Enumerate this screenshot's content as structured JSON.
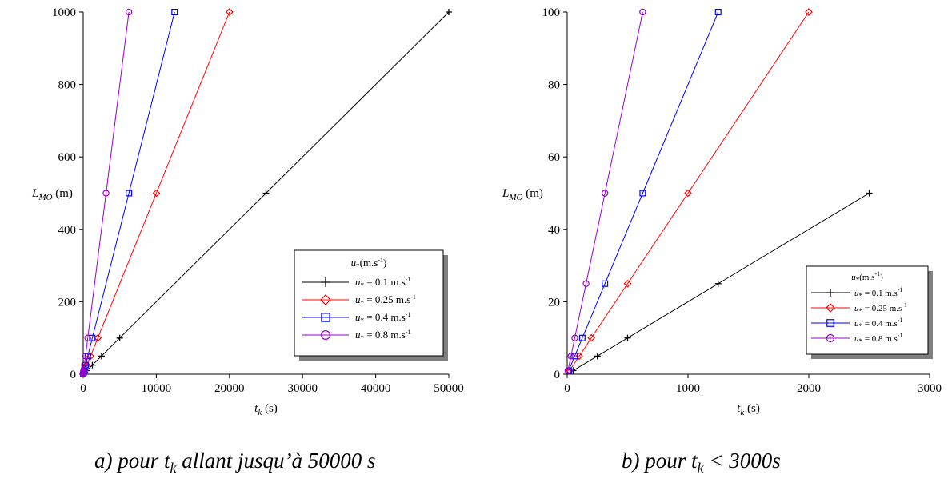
{
  "colors": {
    "black": "#000000",
    "red": "#ff0000",
    "blue": "#0000ff",
    "purple": "#9900cc",
    "shadow": "#808080"
  },
  "chart_data": [
    {
      "type": "line",
      "panel": "a",
      "xlabel": {
        "base": "t",
        "sub": "k",
        "unit": "(s)"
      },
      "ylabel": {
        "base": "L",
        "sub": "MO",
        "unit": "(m)"
      },
      "xlim": [
        0,
        50000
      ],
      "ylim": [
        0,
        1000
      ],
      "xticks": [
        "0",
        "10000",
        "20000",
        "30000",
        "40000",
        "50000"
      ],
      "yticks": [
        "0",
        "200",
        "400",
        "600",
        "800",
        "1000"
      ],
      "legend_title": {
        "base": "u",
        "sub": "*",
        "unit": "(m.s",
        "exp": "-1",
        "close": ")"
      },
      "legend_position": "bottom-right",
      "caption": {
        "prefix": "a) pour t",
        "sub": "k",
        "suffix": " allant jusqu’à 50000 s"
      },
      "series": [
        {
          "name": "u* = 0.1 m.s-1",
          "label": {
            "pre": "u",
            "sub": "*",
            "mid": " = 0.1 m.s",
            "sup": "-1"
          },
          "color": "#000000",
          "marker": "plus",
          "points": [
            [
              50,
              1
            ],
            [
              250,
              5
            ],
            [
              500,
              10
            ],
            [
              1250,
              25
            ],
            [
              2500,
              50
            ],
            [
              5000,
              100
            ],
            [
              25000,
              500
            ],
            [
              50000,
              1000
            ]
          ]
        },
        {
          "name": "u* = 0.25 m.s-1",
          "label": {
            "pre": "u",
            "sub": "*",
            "mid": " = 0.25 m.s",
            "sup": "-1"
          },
          "color": "#ff0000",
          "marker": "diamond",
          "points": [
            [
              20,
              1
            ],
            [
              100,
              5
            ],
            [
              200,
              10
            ],
            [
              500,
              25
            ],
            [
              1000,
              50
            ],
            [
              2000,
              100
            ],
            [
              10000,
              500
            ],
            [
              20000,
              1000
            ]
          ]
        },
        {
          "name": "u* = 0.4 m.s-1",
          "label": {
            "pre": "u",
            "sub": "*",
            "mid": " = 0.4 m.s",
            "sup": "-1"
          },
          "color": "#0000ff",
          "marker": "square",
          "points": [
            [
              12.5,
              1
            ],
            [
              62.5,
              5
            ],
            [
              125,
              10
            ],
            [
              312.5,
              25
            ],
            [
              625,
              50
            ],
            [
              1250,
              100
            ],
            [
              6250,
              500
            ],
            [
              12500,
              1000
            ]
          ]
        },
        {
          "name": "u* = 0.8 m.s-1",
          "label": {
            "pre": "u",
            "sub": "*",
            "mid": " = 0.8 m.s",
            "sup": "-1"
          },
          "color": "#9900cc",
          "marker": "circle",
          "points": [
            [
              6.25,
              1
            ],
            [
              31.25,
              5
            ],
            [
              62.5,
              10
            ],
            [
              156.25,
              25
            ],
            [
              312.5,
              50
            ],
            [
              625,
              100
            ],
            [
              3125,
              500
            ],
            [
              6250,
              1000
            ]
          ]
        }
      ]
    },
    {
      "type": "line",
      "panel": "b",
      "xlabel": {
        "base": "t",
        "sub": "k",
        "unit": "(s)"
      },
      "ylabel": {
        "base": "L",
        "sub": "MO",
        "unit": "(m)"
      },
      "xlim": [
        0,
        3000
      ],
      "ylim": [
        0,
        100
      ],
      "xticks": [
        "0",
        "1000",
        "2000",
        "3000"
      ],
      "yticks": [
        "0",
        "20",
        "40",
        "60",
        "80",
        "100"
      ],
      "legend_title": {
        "base": "u",
        "sub": "*",
        "unit": "(m.s",
        "exp": "-1",
        "close": ")"
      },
      "legend_position": "bottom-right",
      "caption": {
        "prefix": "b) pour t",
        "sub": "k",
        "suffix": " < 3000s"
      },
      "series": [
        {
          "name": "u* = 0.1 m.s-1",
          "label": {
            "pre": "u",
            "sub": "*",
            "mid": " = 0.1 m.s",
            "sup": "-1"
          },
          "color": "#000000",
          "marker": "plus",
          "points": [
            [
              50,
              1
            ],
            [
              250,
              5
            ],
            [
              500,
              10
            ],
            [
              1250,
              25
            ],
            [
              2500,
              50
            ]
          ]
        },
        {
          "name": "u* = 0.25 m.s-1",
          "label": {
            "pre": "u",
            "sub": "*",
            "mid": " = 0.25 m.s",
            "sup": "-1"
          },
          "color": "#ff0000",
          "marker": "diamond",
          "points": [
            [
              20,
              1
            ],
            [
              100,
              5
            ],
            [
              200,
              10
            ],
            [
              500,
              25
            ],
            [
              1000,
              50
            ],
            [
              2000,
              100
            ]
          ]
        },
        {
          "name": "u* = 0.4 m.s-1",
          "label": {
            "pre": "u",
            "sub": "*",
            "mid": " = 0.4 m.s",
            "sup": "-1"
          },
          "color": "#0000ff",
          "marker": "square",
          "points": [
            [
              12.5,
              1
            ],
            [
              62.5,
              5
            ],
            [
              125,
              10
            ],
            [
              312.5,
              25
            ],
            [
              625,
              50
            ],
            [
              1250,
              100
            ]
          ]
        },
        {
          "name": "u* = 0.8 m.s-1",
          "label": {
            "pre": "u",
            "sub": "*",
            "mid": " = 0.8 m.s",
            "sup": "-1"
          },
          "color": "#9900cc",
          "marker": "circle",
          "points": [
            [
              6.25,
              1
            ],
            [
              31.25,
              5
            ],
            [
              62.5,
              10
            ],
            [
              156.25,
              25
            ],
            [
              312.5,
              50
            ],
            [
              625,
              100
            ]
          ]
        }
      ]
    }
  ]
}
